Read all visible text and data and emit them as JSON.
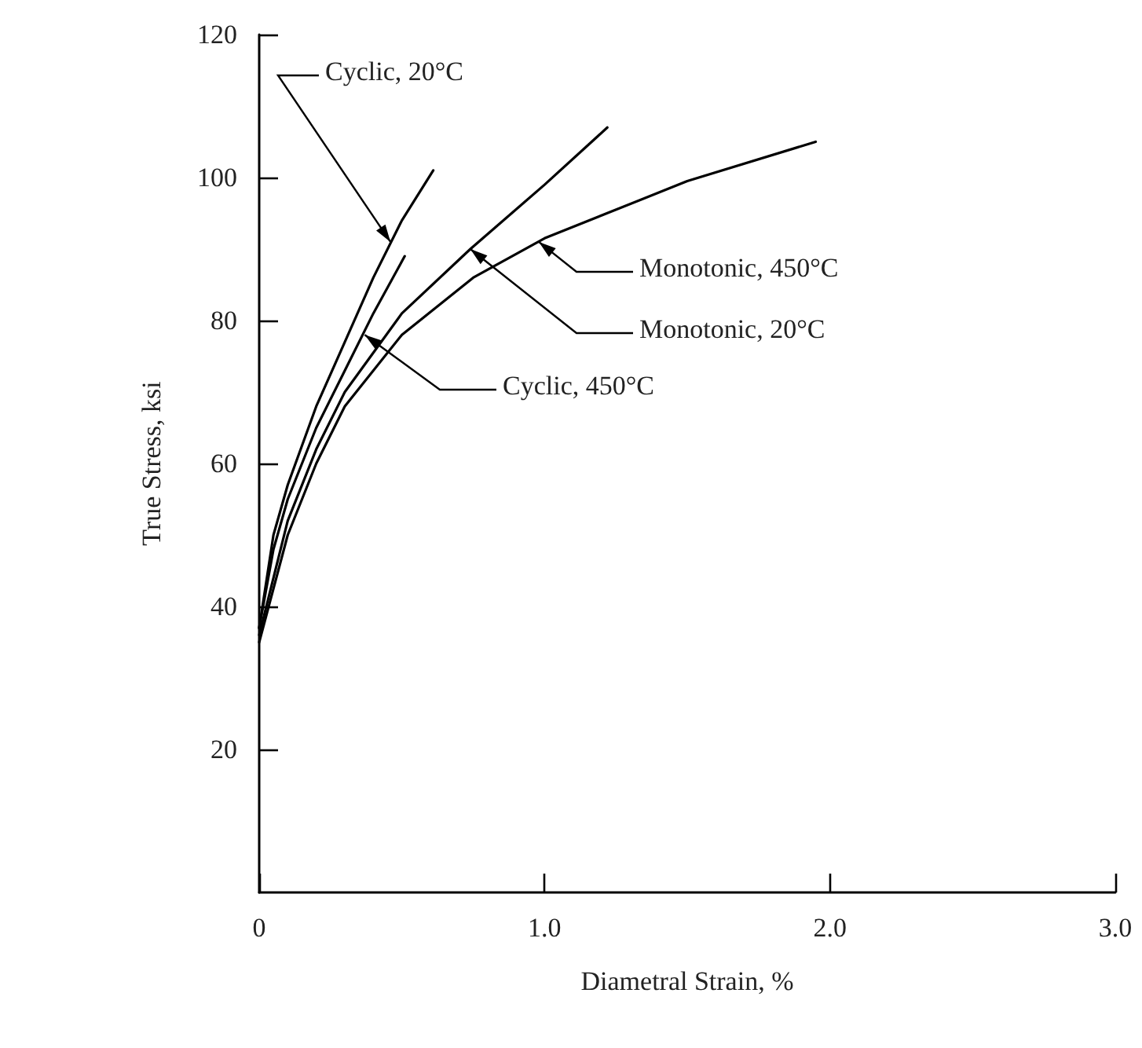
{
  "chart_data": {
    "type": "line",
    "xlabel": "Diametral Strain, %",
    "ylabel": "True Stress, ksi",
    "xlim": [
      0,
      3
    ],
    "xticks": [
      0,
      {
        "value": 1,
        "label": "1.0"
      },
      {
        "value": 2,
        "label": "2.0"
      },
      {
        "value": 3,
        "label": "3.0"
      }
    ],
    "ylim": [
      0,
      120
    ],
    "yticks": [
      20,
      40,
      60,
      80,
      100,
      120
    ],
    "grid": false,
    "marker": "none",
    "line_style": "solid",
    "series": [
      {
        "color": "#000000",
        "x": [
          0,
          0.05,
          0.1,
          0.2,
          0.3,
          0.4,
          0.5,
          0.61
        ],
        "values": [
          37,
          50,
          57,
          68,
          77,
          86,
          94,
          101
        ]
      },
      {
        "color": "#000000",
        "x": [
          0,
          0.05,
          0.1,
          0.2,
          0.3,
          0.4,
          0.51
        ],
        "values": [
          37,
          48,
          55,
          65,
          73,
          81,
          89
        ]
      },
      {
        "color": "#000000",
        "x": [
          0,
          0.1,
          0.2,
          0.3,
          0.5,
          0.74,
          1.0,
          1.22
        ],
        "values": [
          36,
          52,
          62,
          70,
          81,
          90,
          99,
          107
        ]
      },
      {
        "color": "#000000",
        "x": [
          0,
          0.1,
          0.2,
          0.3,
          0.5,
          0.75,
          1.0,
          1.5,
          1.95
        ],
        "values": [
          35,
          50,
          60,
          68,
          78,
          86,
          91.5,
          99.5,
          105
        ]
      }
    ],
    "annotations": [
      {
        "text": "Cyclic, 20°C",
        "x": 0.46,
        "y": 91
      },
      {
        "text": "Monotonic, 450°C",
        "x": 0.98,
        "y": 91
      },
      {
        "text": "Monotonic, 20°C",
        "x": 0.74,
        "y": 90
      },
      {
        "text": "Cyclic, 450°C",
        "x": 0.37,
        "y": 78
      }
    ]
  }
}
